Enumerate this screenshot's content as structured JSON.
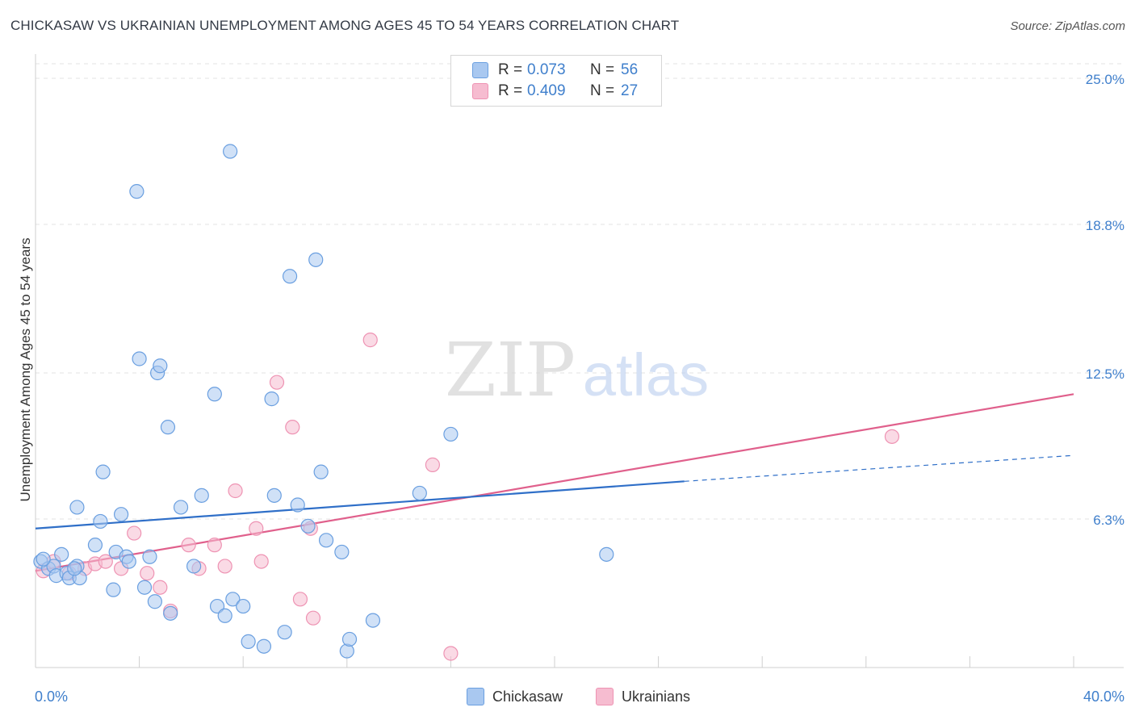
{
  "title": "CHICKASAW VS UKRAINIAN UNEMPLOYMENT AMONG AGES 45 TO 54 YEARS CORRELATION CHART",
  "source": "Source: ZipAtlas.com",
  "watermark": {
    "zip": "ZIP",
    "atlas": "atlas"
  },
  "colors": {
    "chickasaw_fill": "#a9c8f0",
    "chickasaw_stroke": "#6a9fe0",
    "chickasaw_line": "#2f6fc8",
    "ukrainians_fill": "#f6bcd0",
    "ukrainians_stroke": "#ee93b3",
    "ukrainians_line": "#e0608c",
    "axis_label": "#3f7fcc",
    "grid": "#e3e3e3"
  },
  "legend": {
    "rows": [
      {
        "series": "Chickasaw",
        "r_label": "R =",
        "r_value": "0.073",
        "n_label": "N =",
        "n_value": "56"
      },
      {
        "series": "Ukrainians",
        "r_label": "R =",
        "r_value": "0.409",
        "n_label": "N =",
        "n_value": "27"
      }
    ]
  },
  "chart_data": {
    "type": "scatter",
    "title": "CHICKASAW VS UKRAINIAN UNEMPLOYMENT AMONG AGES 45 TO 54 YEARS CORRELATION CHART",
    "xlabel": "",
    "ylabel": "Unemployment Among Ages 45 to 54 years",
    "xlim": [
      0,
      40
    ],
    "ylim": [
      0,
      25
    ],
    "x_tick_labels": [
      {
        "value": 0,
        "label": "0.0%"
      },
      {
        "value": 40,
        "label": "40.0%"
      }
    ],
    "y_tick_labels": [
      {
        "value": 6.3,
        "label": "6.3%"
      },
      {
        "value": 12.5,
        "label": "12.5%"
      },
      {
        "value": 18.8,
        "label": "18.8%"
      },
      {
        "value": 25.0,
        "label": "25.0%"
      }
    ],
    "series": [
      {
        "name": "Chickasaw",
        "points": [
          [
            0.2,
            4.5
          ],
          [
            0.5,
            4.2
          ],
          [
            0.7,
            4.3
          ],
          [
            0.8,
            3.9
          ],
          [
            1.0,
            4.8
          ],
          [
            1.2,
            4.0
          ],
          [
            1.3,
            3.8
          ],
          [
            1.6,
            4.3
          ],
          [
            1.7,
            3.8
          ],
          [
            1.6,
            6.8
          ],
          [
            2.3,
            5.2
          ],
          [
            2.5,
            6.2
          ],
          [
            2.6,
            8.3
          ],
          [
            3.0,
            3.3
          ],
          [
            3.1,
            4.9
          ],
          [
            3.3,
            6.5
          ],
          [
            3.5,
            4.7
          ],
          [
            3.6,
            4.5
          ],
          [
            3.9,
            20.2
          ],
          [
            4.0,
            13.1
          ],
          [
            4.2,
            3.4
          ],
          [
            4.4,
            4.7
          ],
          [
            4.6,
            2.8
          ],
          [
            4.7,
            12.5
          ],
          [
            4.8,
            12.8
          ],
          [
            5.1,
            10.2
          ],
          [
            5.2,
            2.3
          ],
          [
            5.6,
            6.8
          ],
          [
            6.1,
            4.3
          ],
          [
            6.4,
            7.3
          ],
          [
            6.9,
            11.6
          ],
          [
            7.0,
            2.6
          ],
          [
            7.3,
            2.2
          ],
          [
            7.5,
            21.9
          ],
          [
            7.6,
            2.9
          ],
          [
            8.0,
            2.6
          ],
          [
            8.2,
            1.1
          ],
          [
            8.8,
            0.9
          ],
          [
            9.1,
            11.4
          ],
          [
            9.2,
            7.3
          ],
          [
            9.6,
            1.5
          ],
          [
            9.8,
            16.6
          ],
          [
            10.1,
            6.9
          ],
          [
            10.5,
            6.0
          ],
          [
            10.8,
            17.3
          ],
          [
            11.0,
            8.3
          ],
          [
            11.2,
            5.4
          ],
          [
            11.8,
            4.9
          ],
          [
            12.0,
            0.7
          ],
          [
            12.1,
            1.2
          ],
          [
            13.0,
            2.0
          ],
          [
            14.8,
            7.4
          ],
          [
            16.0,
            9.9
          ],
          [
            22.0,
            4.8
          ],
          [
            0.3,
            4.6
          ],
          [
            1.5,
            4.2
          ]
        ],
        "trend": {
          "x": [
            0,
            25
          ],
          "y": [
            5.9,
            7.9
          ],
          "dashed_extension": {
            "x": [
              25,
              40
            ],
            "y": [
              7.9,
              9.0
            ]
          }
        }
      },
      {
        "name": "Ukrainians",
        "points": [
          [
            0.3,
            4.1
          ],
          [
            0.7,
            4.5
          ],
          [
            1.3,
            4.0
          ],
          [
            1.9,
            4.2
          ],
          [
            2.3,
            4.4
          ],
          [
            2.7,
            4.5
          ],
          [
            3.3,
            4.2
          ],
          [
            3.8,
            5.7
          ],
          [
            4.3,
            4.0
          ],
          [
            4.8,
            3.4
          ],
          [
            5.2,
            2.4
          ],
          [
            5.9,
            5.2
          ],
          [
            6.3,
            4.2
          ],
          [
            6.9,
            5.2
          ],
          [
            7.3,
            4.3
          ],
          [
            7.7,
            7.5
          ],
          [
            8.5,
            5.9
          ],
          [
            8.7,
            4.5
          ],
          [
            9.3,
            12.1
          ],
          [
            9.9,
            10.2
          ],
          [
            10.2,
            2.9
          ],
          [
            10.6,
            5.9
          ],
          [
            10.7,
            2.1
          ],
          [
            12.9,
            13.9
          ],
          [
            15.3,
            8.6
          ],
          [
            16.0,
            0.6
          ],
          [
            33.0,
            9.8
          ]
        ],
        "trend": {
          "x": [
            0,
            40
          ],
          "y": [
            4.1,
            11.6
          ]
        }
      }
    ]
  },
  "bottom_legend": [
    {
      "label": "Chickasaw"
    },
    {
      "label": "Ukrainians"
    }
  ]
}
